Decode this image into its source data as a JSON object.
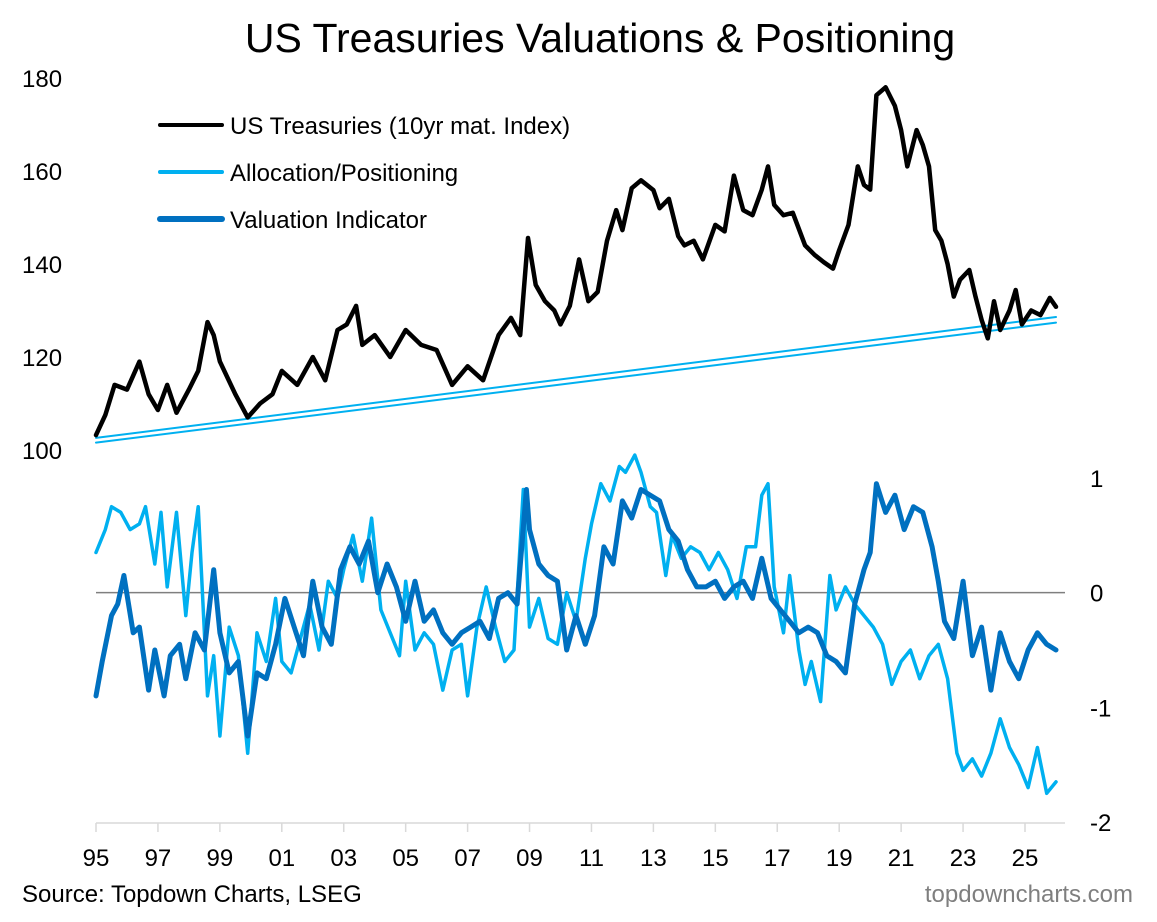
{
  "chart_data": {
    "type": "line",
    "title": "US Treasuries Valuations & Positioning",
    "source": "Source: Topdown Charts, LSEG",
    "brand": "topdowncharts.com",
    "xlabel": "",
    "x_ticks": [
      "95",
      "97",
      "99",
      "01",
      "03",
      "05",
      "07",
      "09",
      "11",
      "13",
      "15",
      "17",
      "19",
      "21",
      "23",
      "25"
    ],
    "x_tick_years": [
      1995,
      1997,
      1999,
      2001,
      2003,
      2005,
      2007,
      2009,
      2011,
      2013,
      2015,
      2017,
      2019,
      2021,
      2023,
      2025
    ],
    "xlim": [
      1995,
      2026.2
    ],
    "left_axis": {
      "ylim": [
        100,
        180
      ],
      "ticks": [
        "100",
        "120",
        "140",
        "160",
        "180"
      ],
      "tick_values": [
        100,
        120,
        140,
        160,
        180
      ]
    },
    "right_axis": {
      "ylim": [
        -2,
        1
      ],
      "ticks": [
        "1",
        "0",
        "-1",
        "-2"
      ],
      "tick_values": [
        1,
        0,
        -1,
        -2
      ]
    },
    "zero_line": {
      "axis": "right",
      "value": 0,
      "color": "#7f7f7f"
    },
    "legend": {
      "placement": "top-left",
      "entries": [
        {
          "label": "US Treasuries (10yr mat. Index)",
          "color": "#000000"
        },
        {
          "label": "Allocation/Positioning",
          "color": "#00b0f0"
        },
        {
          "label": "Valuation Indicator",
          "color": "#0070c0"
        }
      ]
    },
    "series": [
      {
        "name": "US Treasuries (10yr mat. Index)",
        "axis": "left",
        "color": "#000000",
        "x": [
          1995.0,
          1995.3,
          1995.6,
          1996.0,
          1996.4,
          1996.7,
          1997.0,
          1997.3,
          1997.6,
          1998.0,
          1998.3,
          1998.6,
          1998.8,
          1999.0,
          1999.5,
          1999.9,
          2000.3,
          2000.7,
          2001.0,
          2001.5,
          2002.0,
          2002.4,
          2002.8,
          2003.1,
          2003.4,
          2003.6,
          2004.0,
          2004.5,
          2005.0,
          2005.5,
          2006.0,
          2006.5,
          2007.0,
          2007.5,
          2008.0,
          2008.4,
          2008.7,
          2008.95,
          2009.2,
          2009.5,
          2009.8,
          2010.0,
          2010.3,
          2010.6,
          2010.9,
          2011.2,
          2011.5,
          2011.8,
          2012.0,
          2012.3,
          2012.6,
          2013.0,
          2013.2,
          2013.5,
          2013.8,
          2014.0,
          2014.3,
          2014.6,
          2015.0,
          2015.3,
          2015.6,
          2015.9,
          2016.2,
          2016.5,
          2016.7,
          2016.9,
          2017.2,
          2017.5,
          2017.9,
          2018.2,
          2018.5,
          2018.8,
          2019.0,
          2019.3,
          2019.6,
          2019.8,
          2020.0,
          2020.2,
          2020.5,
          2020.8,
          2021.0,
          2021.2,
          2021.5,
          2021.7,
          2021.9,
          2022.1,
          2022.3,
          2022.5,
          2022.7,
          2022.9,
          2023.2,
          2023.4,
          2023.6,
          2023.8,
          2024.0,
          2024.2,
          2024.5,
          2024.7,
          2024.9,
          2025.2,
          2025.5,
          2025.8,
          2026.0
        ],
        "values": [
          103.2,
          107.5,
          114,
          113,
          119,
          112,
          108.6,
          114,
          108,
          113,
          117,
          127.5,
          124.7,
          119,
          112,
          107,
          110,
          112,
          117,
          114,
          120,
          115,
          125.8,
          127,
          131,
          122.6,
          124.7,
          120,
          125.8,
          122.6,
          121.5,
          114,
          118,
          115,
          124.7,
          128.4,
          124.7,
          145.6,
          135.5,
          132,
          130,
          127,
          131,
          141,
          132,
          134,
          145,
          151.6,
          147.3,
          156.3,
          158,
          155.9,
          152,
          154,
          146,
          144,
          145,
          141,
          148.4,
          147,
          159,
          151.6,
          150.5,
          156,
          161,
          152.7,
          150.5,
          151,
          144,
          142,
          140.4,
          139,
          143,
          148.4,
          161,
          157,
          156,
          176.3,
          178,
          174,
          168.8,
          161,
          168.8,
          165.6,
          161,
          147.3,
          145,
          140,
          133,
          136.6,
          138.7,
          133,
          128,
          124,
          132,
          125.8,
          130,
          134.4,
          127,
          130,
          129,
          132.7,
          130.8
        ]
      },
      {
        "name": "Allocation/Positioning",
        "axis": "right",
        "color": "#00b0f0",
        "x": [
          1995.0,
          1995.3,
          1995.5,
          1995.8,
          1996.1,
          1996.4,
          1996.6,
          1996.9,
          1997.1,
          1997.3,
          1997.6,
          1997.9,
          1998.1,
          1998.3,
          1998.6,
          1998.8,
          1999.0,
          1999.3,
          1999.6,
          1999.9,
          2000.2,
          2000.5,
          2000.8,
          2001.0,
          2001.3,
          2001.6,
          2001.9,
          2002.2,
          2002.5,
          2002.8,
          2003.0,
          2003.3,
          2003.6,
          2003.9,
          2004.2,
          2004.5,
          2004.8,
          2005.0,
          2005.3,
          2005.6,
          2005.9,
          2006.2,
          2006.5,
          2006.8,
          2007.0,
          2007.3,
          2007.6,
          2007.9,
          2008.2,
          2008.5,
          2008.8,
          2009.0,
          2009.3,
          2009.6,
          2009.9,
          2010.2,
          2010.5,
          2010.8,
          2011.0,
          2011.3,
          2011.6,
          2011.9,
          2012.1,
          2012.4,
          2012.6,
          2012.9,
          2013.1,
          2013.4,
          2013.6,
          2013.9,
          2014.2,
          2014.5,
          2014.8,
          2015.1,
          2015.4,
          2015.7,
          2016.0,
          2016.3,
          2016.5,
          2016.7,
          2016.9,
          2017.2,
          2017.4,
          2017.7,
          2017.9,
          2018.1,
          2018.4,
          2018.7,
          2018.9,
          2019.2,
          2019.5,
          2019.8,
          2020.1,
          2020.4,
          2020.7,
          2021.0,
          2021.3,
          2021.6,
          2021.9,
          2022.2,
          2022.5,
          2022.8,
          2023.0,
          2023.3,
          2023.6,
          2023.9,
          2024.2,
          2024.5,
          2024.8,
          2025.1,
          2025.4,
          2025.7,
          2026.0
        ],
        "values": [
          0.35,
          0.55,
          0.75,
          0.7,
          0.55,
          0.6,
          0.75,
          0.25,
          0.7,
          0.05,
          0.7,
          -0.2,
          0.35,
          0.75,
          -0.9,
          -0.55,
          -1.25,
          -0.3,
          -0.55,
          -1.4,
          -0.35,
          -0.6,
          -0.05,
          -0.6,
          -0.7,
          -0.4,
          -0.1,
          -0.5,
          0.1,
          -0.05,
          0.2,
          0.5,
          0.1,
          0.65,
          -0.15,
          -0.35,
          -0.55,
          0.1,
          -0.5,
          -0.35,
          -0.45,
          -0.85,
          -0.5,
          -0.45,
          -0.9,
          -0.3,
          0.05,
          -0.3,
          -0.6,
          -0.5,
          0.9,
          -0.3,
          -0.05,
          -0.4,
          -0.45,
          0.0,
          -0.25,
          0.3,
          0.6,
          0.95,
          0.8,
          1.1,
          1.05,
          1.2,
          1.05,
          0.75,
          0.7,
          0.15,
          0.5,
          0.3,
          0.4,
          0.35,
          0.2,
          0.35,
          0.2,
          -0.05,
          0.4,
          0.4,
          0.85,
          0.95,
          0.05,
          -0.35,
          0.15,
          -0.5,
          -0.8,
          -0.6,
          -0.95,
          0.15,
          -0.15,
          0.05,
          -0.1,
          -0.2,
          -0.3,
          -0.45,
          -0.8,
          -0.6,
          -0.5,
          -0.75,
          -0.55,
          -0.45,
          -0.75,
          -1.4,
          -1.55,
          -1.45,
          -1.6,
          -1.4,
          -1.1,
          -1.35,
          -1.5,
          -1.7,
          -1.35,
          -1.75,
          -1.65
        ]
      },
      {
        "name": "Valuation Indicator",
        "axis": "right",
        "color": "#0070c0",
        "x": [
          1995.0,
          1995.2,
          1995.5,
          1995.7,
          1995.9,
          1996.2,
          1996.4,
          1996.7,
          1996.9,
          1997.2,
          1997.4,
          1997.7,
          1997.9,
          1998.2,
          1998.5,
          1998.8,
          1999.0,
          1999.3,
          1999.6,
          1999.9,
          2000.2,
          2000.5,
          2000.8,
          2001.1,
          2001.4,
          2001.7,
          2002.0,
          2002.3,
          2002.6,
          2002.9,
          2003.2,
          2003.5,
          2003.8,
          2004.1,
          2004.4,
          2004.7,
          2005.0,
          2005.3,
          2005.6,
          2005.9,
          2006.2,
          2006.5,
          2006.8,
          2007.1,
          2007.4,
          2007.7,
          2008.0,
          2008.3,
          2008.6,
          2008.9,
          2009.0,
          2009.3,
          2009.6,
          2009.9,
          2010.2,
          2010.5,
          2010.8,
          2011.1,
          2011.4,
          2011.7,
          2012.0,
          2012.3,
          2012.6,
          2012.9,
          2013.2,
          2013.5,
          2013.8,
          2014.1,
          2014.4,
          2014.7,
          2015.0,
          2015.3,
          2015.6,
          2015.9,
          2016.2,
          2016.5,
          2016.8,
          2017.1,
          2017.4,
          2017.7,
          2018.0,
          2018.3,
          2018.6,
          2018.9,
          2019.2,
          2019.5,
          2019.8,
          2020.0,
          2020.2,
          2020.5,
          2020.8,
          2021.1,
          2021.4,
          2021.7,
          2022.0,
          2022.2,
          2022.4,
          2022.7,
          2023.0,
          2023.3,
          2023.6,
          2023.9,
          2024.2,
          2024.5,
          2024.8,
          2025.1,
          2025.4,
          2025.7,
          2026.0
        ],
        "values": [
          -0.9,
          -0.6,
          -0.2,
          -0.1,
          0.15,
          -0.35,
          -0.3,
          -0.85,
          -0.5,
          -0.9,
          -0.55,
          -0.45,
          -0.75,
          -0.35,
          -0.5,
          0.2,
          -0.35,
          -0.7,
          -0.6,
          -1.25,
          -0.7,
          -0.75,
          -0.45,
          -0.05,
          -0.3,
          -0.55,
          0.1,
          -0.3,
          -0.45,
          0.2,
          0.4,
          0.25,
          0.45,
          0.0,
          0.25,
          0.05,
          -0.25,
          0.1,
          -0.25,
          -0.15,
          -0.35,
          -0.45,
          -0.35,
          -0.3,
          -0.25,
          -0.4,
          -0.05,
          0.0,
          -0.1,
          0.9,
          0.55,
          0.25,
          0.15,
          0.1,
          -0.5,
          -0.2,
          -0.45,
          -0.2,
          0.4,
          0.25,
          0.8,
          0.65,
          0.9,
          0.85,
          0.8,
          0.55,
          0.45,
          0.2,
          0.05,
          0.05,
          0.1,
          -0.05,
          0.05,
          0.1,
          -0.05,
          0.3,
          -0.05,
          -0.15,
          -0.25,
          -0.35,
          -0.3,
          -0.35,
          -0.55,
          -0.6,
          -0.7,
          -0.1,
          0.2,
          0.35,
          0.95,
          0.7,
          0.85,
          0.55,
          0.75,
          0.7,
          0.4,
          0.1,
          -0.25,
          -0.4,
          0.1,
          -0.55,
          -0.3,
          -0.85,
          -0.35,
          -0.6,
          -0.75,
          -0.5,
          -0.35,
          -0.45,
          -0.5
        ]
      },
      {
        "name": "Trendline upper",
        "axis": "left",
        "color": "#00b0f0",
        "x": [
          1995.0,
          2026.0
        ],
        "values": [
          102.6,
          128.6
        ]
      },
      {
        "name": "Trendline lower",
        "axis": "left",
        "color": "#00b0f0",
        "x": [
          1995.0,
          2026.0
        ],
        "values": [
          101.6,
          127.4
        ]
      }
    ]
  }
}
